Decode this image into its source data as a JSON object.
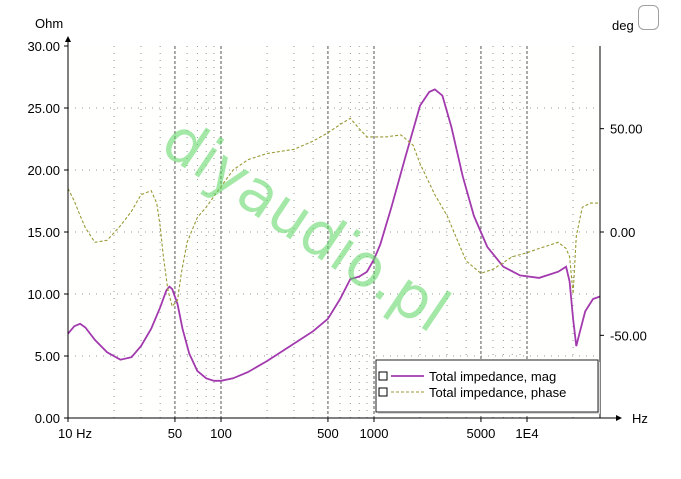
{
  "chart_data": {
    "type": "line",
    "x_scale": "log",
    "xlim": [
      10,
      30000
    ],
    "ylim_left": [
      0,
      30
    ],
    "ylim_right": [
      -90,
      90
    ],
    "left_unit": "Ohm",
    "right_unit": "deg",
    "x_unit": "Hz",
    "x_ticks": [
      {
        "value": 10,
        "label": "10 Hz"
      },
      {
        "value": 50,
        "label": "50"
      },
      {
        "value": 100,
        "label": "100"
      },
      {
        "value": 500,
        "label": "500"
      },
      {
        "value": 1000,
        "label": "1000"
      },
      {
        "value": 5000,
        "label": "5000"
      },
      {
        "value": 10000,
        "label": "1E4"
      }
    ],
    "left_ticks": [
      {
        "value": 0,
        "label": "0.00"
      },
      {
        "value": 5,
        "label": "5.00"
      },
      {
        "value": 10,
        "label": "10.00"
      },
      {
        "value": 15,
        "label": "15.00"
      },
      {
        "value": 20,
        "label": "20.00"
      },
      {
        "value": 25,
        "label": "25.00"
      },
      {
        "value": 30,
        "label": "30.00"
      }
    ],
    "right_ticks": [
      {
        "value": -50,
        "label": "-50.00"
      },
      {
        "value": 0,
        "label": "0.00"
      },
      {
        "value": 50,
        "label": "50.00"
      }
    ],
    "grid": true,
    "legend_position": "bottom-right",
    "watermark": "diyaudio.pl",
    "series": [
      {
        "name": "Total impedance, mag",
        "axis": "left",
        "color": "#a23aae",
        "style": "solid",
        "x": [
          10,
          11,
          12,
          13,
          15,
          18,
          22,
          26,
          30,
          35,
          40,
          44,
          46,
          48,
          52,
          56,
          62,
          70,
          80,
          90,
          100,
          120,
          150,
          200,
          300,
          400,
          500,
          600,
          700,
          800,
          900,
          1000,
          1100,
          1300,
          1600,
          2000,
          2300,
          2500,
          2800,
          3200,
          3800,
          4500,
          5500,
          7000,
          9000,
          12000,
          16000,
          18000,
          19000,
          20000,
          21000,
          22000,
          24000,
          27000,
          30000
        ],
        "y": [
          6.8,
          7.4,
          7.6,
          7.3,
          6.3,
          5.3,
          4.7,
          4.9,
          5.8,
          7.2,
          8.9,
          10.3,
          10.6,
          10.4,
          9.2,
          7.2,
          5.2,
          3.8,
          3.2,
          3.0,
          3.0,
          3.2,
          3.7,
          4.6,
          6.0,
          7.0,
          8.0,
          9.6,
          11.2,
          11.4,
          11.8,
          12.8,
          14.0,
          17.0,
          21.0,
          25.2,
          26.3,
          26.5,
          26.0,
          23.5,
          19.5,
          16.3,
          13.8,
          12.2,
          11.5,
          11.3,
          11.8,
          12.2,
          11.0,
          8.0,
          5.8,
          6.8,
          8.6,
          9.6,
          9.8
        ]
      },
      {
        "name": "Total impedance, phase",
        "axis": "right",
        "color": "#9a9a35",
        "style": "dashed",
        "x": [
          10,
          11,
          12,
          13,
          15,
          18,
          22,
          26,
          30,
          35,
          38,
          40,
          42,
          45,
          48,
          52,
          55,
          60,
          70,
          80,
          100,
          120,
          150,
          200,
          300,
          400,
          500,
          600,
          700,
          800,
          900,
          1000,
          1200,
          1500,
          1800,
          2000,
          2500,
          3000,
          4000,
          5000,
          6000,
          8000,
          10000,
          12000,
          16000,
          18000,
          19000,
          20000,
          21000,
          23000,
          26000,
          30000
        ],
        "y": [
          21,
          15,
          8,
          2,
          -5,
          -4,
          3,
          10,
          18,
          20,
          14,
          3,
          -12,
          -28,
          -36,
          -33,
          -20,
          -5,
          7,
          12,
          22,
          30,
          35,
          38,
          40,
          44,
          48,
          52,
          55,
          50,
          46,
          46,
          46,
          47,
          42,
          33,
          18,
          8,
          -14,
          -20,
          -18,
          -12,
          -10,
          -8,
          -5,
          -8,
          -12,
          -30,
          -2,
          12,
          14,
          14
        ]
      }
    ]
  }
}
